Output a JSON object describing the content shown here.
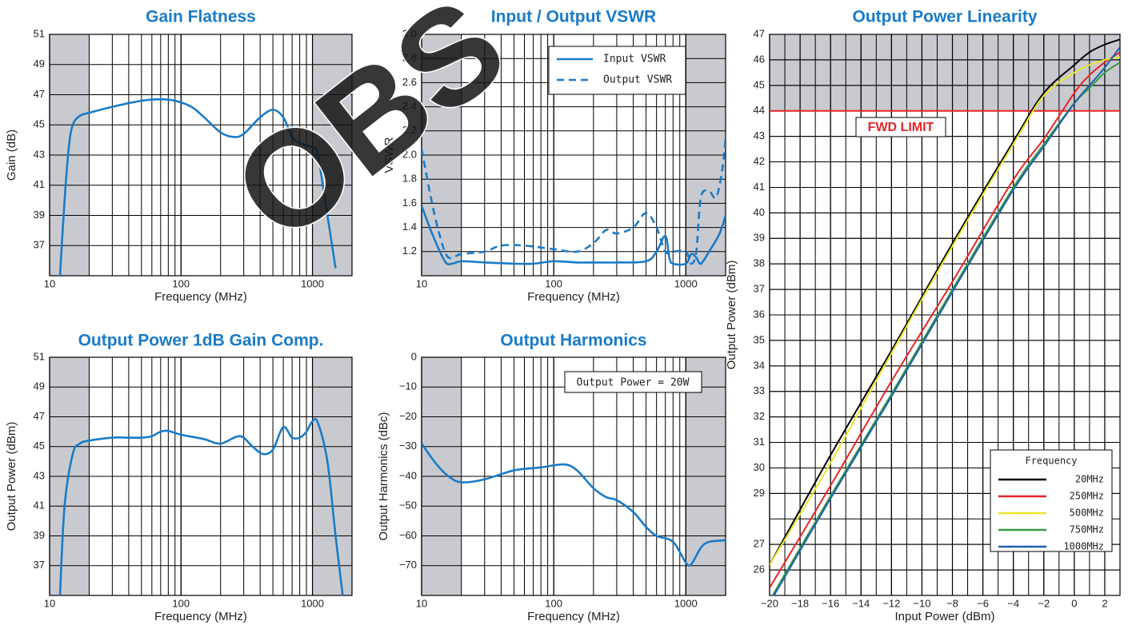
{
  "watermark": "OBS",
  "chart_data": [
    {
      "type": "line",
      "title": "Gain Flatness",
      "xlabel": "Frequency (MHz)",
      "ylabel": "Gain (dB)",
      "xscale": "log",
      "xlim": [
        10,
        2000
      ],
      "xticks": [
        10,
        100,
        1000
      ],
      "ylim": [
        35,
        51
      ],
      "yticks": [
        37,
        39,
        41,
        43,
        45,
        47,
        49,
        51
      ],
      "grid": true,
      "minor_grid": true,
      "shaded_ranges": [
        [
          10,
          20
        ],
        [
          1000,
          2000
        ]
      ],
      "series": [
        {
          "name": "Gain",
          "color": "#1a7bc8",
          "x": [
            12,
            13,
            14,
            15,
            17,
            20,
            30,
            50,
            70,
            90,
            120,
            150,
            200,
            250,
            300,
            400,
            500,
            600,
            700,
            800,
            1000,
            1100,
            1300,
            1500
          ],
          "values": [
            35,
            40,
            43.5,
            45,
            45.6,
            45.8,
            46.2,
            46.6,
            46.7,
            46.6,
            46.2,
            45.5,
            44.5,
            44.2,
            44.4,
            45.5,
            46,
            45.5,
            44.2,
            43.8,
            43.5,
            43,
            39,
            35.5
          ]
        }
      ]
    },
    {
      "type": "line",
      "title": "Input / Output VSWR",
      "xlabel": "Frequency (MHz)",
      "ylabel": "VSWR",
      "xscale": "log",
      "xlim": [
        10,
        2000
      ],
      "xticks": [
        10,
        100,
        1000
      ],
      "ylim": [
        1,
        3
      ],
      "yticks": [
        1.2,
        1.4,
        1.6,
        1.8,
        {
          "value": 2,
          "label": "2.0"
        },
        2.2,
        2.4,
        2.6,
        2.8,
        {
          "value": 3,
          "label": "3.0"
        }
      ],
      "grid": true,
      "minor_grid": true,
      "shaded_ranges": [
        [
          10,
          20
        ],
        [
          1000,
          2000
        ]
      ],
      "legend": "upper right",
      "series": [
        {
          "name": "Input VSWR",
          "color": "#1a7bc8",
          "style": "solid",
          "x": [
            10,
            12,
            15,
            17,
            20,
            30,
            50,
            70,
            100,
            150,
            200,
            300,
            500,
            600,
            700,
            750,
            800,
            1000,
            1100,
            1200,
            1300,
            1500,
            1800,
            2000
          ],
          "values": [
            1.58,
            1.35,
            1.12,
            1.1,
            1.12,
            1.11,
            1.1,
            1.1,
            1.12,
            1.11,
            1.11,
            1.11,
            1.12,
            1.2,
            1.33,
            1.15,
            1.1,
            1.1,
            1.18,
            1.15,
            1.1,
            1.2,
            1.35,
            1.5
          ]
        },
        {
          "name": "Output VSWR",
          "color": "#1a7bc8",
          "style": "dashed",
          "x": [
            10,
            12,
            14,
            16,
            20,
            30,
            40,
            60,
            100,
            150,
            200,
            250,
            300,
            400,
            500,
            600,
            700,
            800,
            1000,
            1100,
            1200,
            1300,
            1500,
            1700,
            1900,
            2000
          ],
          "values": [
            2.05,
            1.6,
            1.3,
            1.15,
            1.18,
            1.2,
            1.25,
            1.25,
            1.22,
            1.2,
            1.27,
            1.38,
            1.35,
            1.4,
            1.52,
            1.4,
            1.2,
            1.2,
            1.2,
            1.1,
            1.2,
            1.65,
            1.7,
            1.65,
            1.9,
            2.15
          ]
        }
      ]
    },
    {
      "type": "line",
      "title": "Output Power Linearity",
      "xlabel": "Input Power (dBm)",
      "ylabel": "Output Power (dBm)",
      "xscale": "linear",
      "xlim": [
        -20,
        3
      ],
      "xticks": [
        {
          "value": -20,
          "label": "−20"
        },
        {
          "value": -18,
          "label": "−18"
        },
        {
          "value": -16,
          "label": "−16"
        },
        {
          "value": -14,
          "label": "−14"
        },
        {
          "value": -12,
          "label": "−12"
        },
        {
          "value": -10,
          "label": "−10"
        },
        {
          "value": -8,
          "label": "−8"
        },
        {
          "value": -6,
          "label": "−6"
        },
        {
          "value": -4,
          "label": "−4"
        },
        {
          "value": -2,
          "label": "−2"
        },
        0,
        2
      ],
      "ylim": [
        25,
        47
      ],
      "yticks": [
        26,
        27,
        29,
        30,
        31,
        32,
        33,
        34,
        35,
        36,
        37,
        38,
        39,
        40,
        41,
        42,
        43,
        44,
        45,
        46,
        47
      ],
      "grid": true,
      "minor_grid": true,
      "limit": 44,
      "limit_label": "FWD LIMIT",
      "limit_color": "#e8242a",
      "legend": "lower right",
      "legend_title": "Frequency",
      "series": [
        {
          "name": "20MHz",
          "color": "#000000",
          "x": [
            -20,
            -16,
            -12,
            -8,
            -4,
            -2,
            0,
            1,
            2,
            3
          ],
          "values": [
            26.2,
            30.5,
            34.6,
            38.8,
            42.8,
            44.7,
            45.8,
            46.3,
            46.6,
            46.8
          ]
        },
        {
          "name": "250MHz",
          "color": "#e8242a",
          "x": [
            -20,
            -16,
            -12,
            -8,
            -4,
            -2,
            0,
            1,
            2,
            3
          ],
          "values": [
            25.3,
            29.3,
            33.4,
            37.3,
            41.3,
            42.9,
            44.7,
            45.4,
            45.9,
            46.3
          ]
        },
        {
          "name": "500MHz",
          "color": "#e6e62e",
          "x": [
            -20,
            -16,
            -12,
            -8,
            -4,
            -2,
            0,
            1,
            2,
            3
          ],
          "values": [
            26.2,
            30.2,
            34.5,
            38.7,
            42.7,
            44.6,
            45.5,
            45.8,
            46,
            46.1
          ]
        },
        {
          "name": "750MHz",
          "color": "#3a9a48",
          "x": [
            -20,
            -16,
            -12,
            -8,
            -4,
            -2,
            0,
            1,
            2,
            3
          ],
          "values": [
            24.8,
            28.9,
            32.9,
            37,
            41,
            42.7,
            44.3,
            44.9,
            45.5,
            45.9
          ]
        },
        {
          "name": "1000MHz",
          "color": "#1e5fae",
          "x": [
            -20,
            -16,
            -12,
            -8,
            -4,
            -2,
            0,
            1,
            2,
            3
          ],
          "values": [
            24.7,
            28.8,
            32.8,
            36.9,
            40.9,
            42.6,
            44.3,
            45,
            45.7,
            46.5
          ]
        }
      ]
    },
    {
      "type": "line",
      "title": "Output Power 1dB Gain Comp.",
      "xlabel": "Frequency (MHz)",
      "ylabel": "Output Power (dBm)",
      "xscale": "log",
      "xlim": [
        10,
        2000
      ],
      "xticks": [
        10,
        100,
        1000
      ],
      "ylim": [
        35,
        51
      ],
      "yticks": [
        37,
        39,
        41,
        43,
        45,
        47,
        49,
        51
      ],
      "grid": true,
      "minor_grid": true,
      "shaded_ranges": [
        [
          10,
          20
        ],
        [
          1000,
          2000
        ]
      ],
      "series": [
        {
          "name": "P1dB",
          "color": "#1a7bc8",
          "x": [
            12,
            13,
            15,
            17,
            20,
            30,
            40,
            50,
            60,
            70,
            80,
            100,
            150,
            200,
            280,
            350,
            420,
            500,
            600,
            700,
            800,
            900,
            1000,
            1100,
            1300,
            1500,
            1700
          ],
          "values": [
            35,
            41,
            44.5,
            45.2,
            45.4,
            45.6,
            45.6,
            45.6,
            45.7,
            46,
            46.05,
            45.8,
            45.5,
            45.2,
            45.7,
            45,
            44.5,
            44.8,
            46.3,
            45.6,
            45.6,
            46,
            46.7,
            46.6,
            44,
            39,
            35
          ]
        }
      ]
    },
    {
      "type": "line",
      "title": "Output Harmonics",
      "xlabel": "Frequency (MHz)",
      "ylabel": "Output Harmonics (dBc)",
      "xscale": "log",
      "xlim": [
        10,
        2000
      ],
      "xticks": [
        10,
        100,
        1000
      ],
      "ylim": [
        -80,
        0
      ],
      "yticks": [
        0,
        {
          "value": -10,
          "label": "−10"
        },
        {
          "value": -20,
          "label": "−20"
        },
        {
          "value": -30,
          "label": "−30"
        },
        {
          "value": -40,
          "label": "−40"
        },
        {
          "value": -50,
          "label": "−50"
        },
        {
          "value": -60,
          "label": "−60"
        },
        {
          "value": -70,
          "label": "−70"
        }
      ],
      "grid": true,
      "minor_grid": true,
      "shaded_ranges": [
        [
          10,
          20
        ],
        [
          1000,
          2000
        ]
      ],
      "annotation": "Output Power = 20W",
      "series": [
        {
          "name": "Harmonics",
          "color": "#1a7bc8",
          "x": [
            10,
            13,
            16,
            20,
            30,
            50,
            80,
            120,
            150,
            200,
            250,
            300,
            400,
            500,
            600,
            800,
            1000,
            1100,
            1300,
            1500,
            2000
          ],
          "values": [
            -29,
            -36,
            -40,
            -42,
            -41,
            -38,
            -37,
            -36,
            -38,
            -44,
            -47,
            -48,
            -52,
            -57,
            -60,
            -62,
            -69,
            -69.5,
            -64,
            -62,
            -61.5
          ]
        }
      ]
    }
  ]
}
